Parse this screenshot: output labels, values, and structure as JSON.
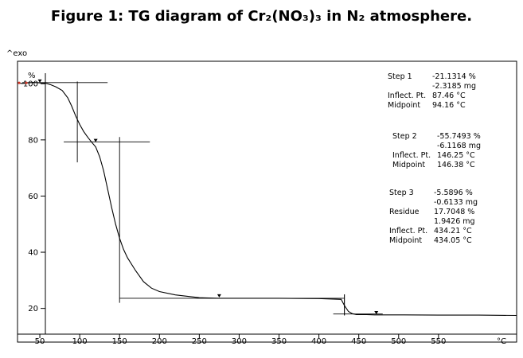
{
  "figure": {
    "title": "Figure 1: TG diagram of Cr₂(NO₃)₃ in N₂ atmosphere."
  },
  "chart_data": {
    "type": "line",
    "title": "",
    "corner_label": "^exo",
    "ylabel": "%",
    "xlabel": "°C",
    "xlim": [
      22,
      648
    ],
    "ylim": [
      8,
      108
    ],
    "x_ticks": [
      50,
      100,
      150,
      200,
      250,
      300,
      350,
      400,
      450,
      500,
      550
    ],
    "y_ticks": [
      20,
      40,
      60,
      80,
      100
    ],
    "grid": false,
    "series": [
      {
        "color": "#000000",
        "x": [
          22,
          28,
          35,
          42,
          50,
          57,
          63,
          70,
          78,
          85,
          90,
          95,
          100,
          105,
          110,
          115,
          120,
          125,
          130,
          135,
          140,
          145,
          150,
          155,
          160,
          170,
          180,
          190,
          200,
          220,
          250,
          275,
          300,
          350,
          400,
          428,
          432,
          437,
          442,
          447,
          452,
          460,
          470,
          480,
          500,
          550,
          600,
          648
        ],
        "y": [
          100.3,
          100.1,
          100.3,
          100.5,
          100.3,
          100.2,
          99.7,
          98.9,
          97.6,
          95.0,
          92.0,
          88.5,
          85.5,
          83.0,
          81.0,
          79.2,
          77.5,
          74.0,
          69.0,
          62.5,
          56.0,
          50.0,
          45.0,
          41.0,
          38.0,
          33.5,
          29.5,
          27.2,
          26.0,
          24.8,
          23.8,
          23.6,
          23.6,
          23.6,
          23.5,
          23.2,
          21.0,
          18.9,
          18.1,
          17.8,
          17.8,
          17.8,
          17.7,
          17.7,
          17.7,
          17.6,
          17.6,
          17.5
        ]
      }
    ],
    "tangent_constructions": [
      {
        "vline_x": 97,
        "vline_y": [
          72,
          100.8
        ],
        "hline_y": 100.4,
        "hline_x": [
          28,
          135
        ]
      },
      {
        "vline_x": 150,
        "vline_y": [
          22,
          81
        ],
        "hline_y": 79.3,
        "hline_x": [
          80,
          188
        ]
      },
      {
        "vline_x": 432,
        "vline_y": [
          17.5,
          25
        ],
        "hline_y": 23.6,
        "hline_x": [
          150,
          432
        ]
      },
      {
        "vline_x": 432,
        "vline_y": [
          17.5,
          25
        ],
        "hline_y": 18.0,
        "hline_x": [
          418,
          480
        ]
      }
    ],
    "markers": [
      {
        "x": 50,
        "y": 100.4
      },
      {
        "x": 120,
        "y": 79.2
      },
      {
        "x": 275,
        "y": 23.9
      },
      {
        "x": 472,
        "y": 17.9
      }
    ],
    "annotations": [
      {
        "step": "Step 1",
        "rows": [
          {
            "label": "Step 1",
            "value": "-21.1314 %"
          },
          {
            "label": "",
            "value": "-2.3185 mg"
          },
          {
            "label": "Inflect. Pt.",
            "value": "87.46 °C"
          },
          {
            "label": "Midpoint",
            "value": "94.16 °C"
          }
        ]
      },
      {
        "step": "Step 2",
        "rows": [
          {
            "label": "Step 2",
            "value": "-55.7493 %"
          },
          {
            "label": "",
            "value": "-6.1168 mg"
          },
          {
            "label": "Inflect. Pt.",
            "value": "146.25 °C"
          },
          {
            "label": "Midpoint",
            "value": "146.38 °C"
          }
        ]
      },
      {
        "step": "Step 3",
        "rows": [
          {
            "label": "Step 3",
            "value": "-5.5896 %"
          },
          {
            "label": "",
            "value": "-0.6133 mg"
          },
          {
            "label": "Residue",
            "value": "17.7048 %"
          },
          {
            "label": "",
            "value": "1.9426 mg"
          },
          {
            "label": "Inflect. Pt.",
            "value": "434.21 °C"
          },
          {
            "label": "Midpoint",
            "value": "434.05 °C"
          }
        ]
      }
    ]
  }
}
